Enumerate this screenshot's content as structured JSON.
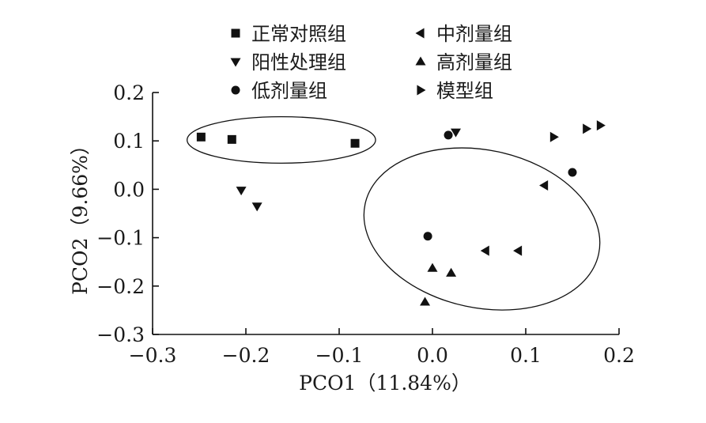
{
  "chart_data": {
    "type": "scatter",
    "xlabel": "PCO1（11.84%）",
    "ylabel": "PCO2（9.66%）",
    "xlim": [
      -0.3,
      0.2
    ],
    "ylim": [
      -0.3,
      0.2
    ],
    "x_ticks": [
      "−0.3",
      "−0.2",
      "−0.1",
      "0.0",
      "0.1",
      "0.2"
    ],
    "y_ticks": [
      "−0.3",
      "−0.2",
      "−0.1",
      "0.0",
      "0.1",
      "0.2"
    ],
    "grid": false,
    "legend_position": "top",
    "series": [
      {
        "name": "正常对照组",
        "marker": "square",
        "points": [
          [
            -0.248,
            0.108
          ],
          [
            -0.215,
            0.103
          ],
          [
            -0.083,
            0.095
          ]
        ]
      },
      {
        "name": "阳性处理组",
        "marker": "triangle-down",
        "points": [
          [
            -0.205,
            -0.002
          ],
          [
            -0.188,
            -0.035
          ],
          [
            0.025,
            0.118
          ]
        ]
      },
      {
        "name": "低剂量组",
        "marker": "circle",
        "points": [
          [
            0.017,
            0.112
          ],
          [
            0.15,
            0.035
          ],
          [
            -0.005,
            -0.097
          ]
        ]
      },
      {
        "name": "中剂量组",
        "marker": "triangle-left",
        "points": [
          [
            0.12,
            0.008
          ],
          [
            0.057,
            -0.127
          ],
          [
            0.092,
            -0.127
          ]
        ]
      },
      {
        "name": "高剂量组",
        "marker": "triangle-up",
        "points": [
          [
            0.0,
            -0.163
          ],
          [
            0.02,
            -0.173
          ],
          [
            -0.008,
            -0.233
          ]
        ]
      },
      {
        "name": "模型组",
        "marker": "triangle-right",
        "points": [
          [
            0.13,
            0.108
          ],
          [
            0.165,
            0.125
          ],
          [
            0.18,
            0.132
          ]
        ]
      }
    ],
    "ellipses": [
      {
        "cx": -0.162,
        "cy": 0.102,
        "rx": 0.101,
        "ry": 0.048
      },
      {
        "cx": 0.053,
        "cy": -0.082,
        "rx": 0.128,
        "ry": 0.163,
        "rotation_deg": 12
      }
    ]
  }
}
